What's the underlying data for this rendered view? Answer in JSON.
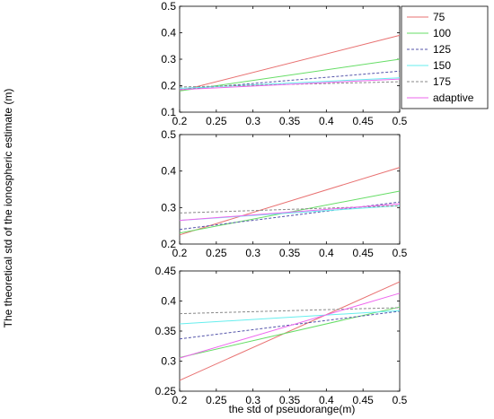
{
  "figure": {
    "xlabel": "the std of pseudorange(m)",
    "ylabel": "The theoretical std of the ionospheric estimate (m)"
  },
  "legend": {
    "placement": "right of top panel",
    "entries": [
      {
        "name": "75",
        "color": "#e87070",
        "dash": "solid"
      },
      {
        "name": "100",
        "color": "#66dd66",
        "dash": "solid"
      },
      {
        "name": "125",
        "color": "#5555aa",
        "dash": "dashed"
      },
      {
        "name": "150",
        "color": "#66eeee",
        "dash": "solid"
      },
      {
        "name": "175",
        "color": "#888888",
        "dash": "dashed"
      },
      {
        "name": "adaptive",
        "color": "#ee66ee",
        "dash": "solid"
      }
    ]
  },
  "chart_data": [
    {
      "type": "line",
      "xlim": [
        0.2,
        0.5
      ],
      "ylim": [
        0.1,
        0.5
      ],
      "xticks": [
        "0.2",
        "0.25",
        "0.3",
        "0.35",
        "0.4",
        "0.45",
        "0.5"
      ],
      "yticks": [
        "0.1",
        "0.2",
        "0.3",
        "0.4",
        "0.5"
      ],
      "x": [
        0.2,
        0.5
      ],
      "series": [
        {
          "name": "75",
          "values": [
            0.18,
            0.39
          ]
        },
        {
          "name": "100",
          "values": [
            0.18,
            0.3
          ]
        },
        {
          "name": "125",
          "values": [
            0.185,
            0.255
          ]
        },
        {
          "name": "150",
          "values": [
            0.19,
            0.23
          ]
        },
        {
          "name": "175",
          "values": [
            0.195,
            0.215
          ]
        },
        {
          "name": "adaptive",
          "values": [
            0.185,
            0.225
          ]
        }
      ]
    },
    {
      "type": "line",
      "xlim": [
        0.2,
        0.5
      ],
      "ylim": [
        0.2,
        0.5
      ],
      "xticks": [
        "0.2",
        "0.25",
        "0.3",
        "0.35",
        "0.4",
        "0.45",
        "0.5"
      ],
      "yticks": [
        "0.2",
        "0.3",
        "0.4",
        "0.5"
      ],
      "x": [
        0.2,
        0.5
      ],
      "series": [
        {
          "name": "75",
          "values": [
            0.225,
            0.41
          ]
        },
        {
          "name": "100",
          "values": [
            0.23,
            0.345
          ]
        },
        {
          "name": "125",
          "values": [
            0.24,
            0.315
          ]
        },
        {
          "name": "150",
          "values": [
            0.265,
            0.305
          ]
        },
        {
          "name": "175",
          "values": [
            0.285,
            0.305
          ]
        },
        {
          "name": "adaptive",
          "values": [
            0.265,
            0.31
          ]
        }
      ]
    },
    {
      "type": "line",
      "xlim": [
        0.2,
        0.5
      ],
      "ylim": [
        0.25,
        0.45
      ],
      "xticks": [
        "0.2",
        "0.25",
        "0.3",
        "0.35",
        "0.4",
        "0.45",
        "0.5"
      ],
      "yticks": [
        "0.25",
        "0.3",
        "0.35",
        "0.4",
        "0.45"
      ],
      "x": [
        0.2,
        0.5
      ],
      "series": [
        {
          "name": "75",
          "values": [
            0.268,
            0.432
          ]
        },
        {
          "name": "100",
          "values": [
            0.306,
            0.39
          ]
        },
        {
          "name": "125",
          "values": [
            0.337,
            0.383
          ]
        },
        {
          "name": "150",
          "values": [
            0.362,
            0.384
          ]
        },
        {
          "name": "175",
          "values": [
            0.379,
            0.389
          ]
        },
        {
          "name": "adaptive",
          "values": [
            0.305,
            0.413
          ]
        }
      ]
    }
  ]
}
